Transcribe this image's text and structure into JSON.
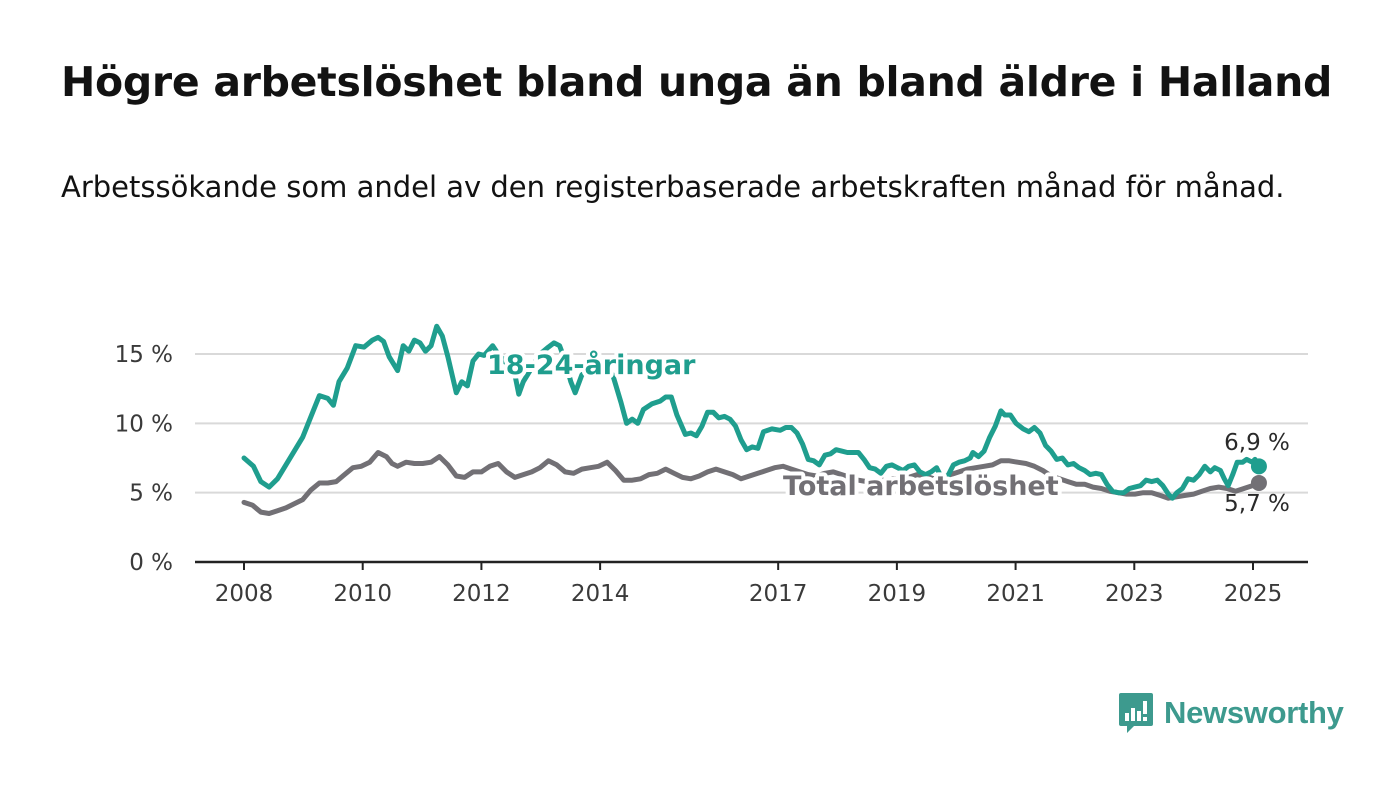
{
  "header": {
    "title": "Högre arbetslöshet bland unga än bland äldre i Halland",
    "subtitle": "Arbetssökande som andel av den registerbaserade arbetskraften månad för månad."
  },
  "brand": {
    "name": "Newsworthy",
    "icon": "newsworthy-logo-icon",
    "color": "#3d9a8e"
  },
  "chart_data": {
    "type": "line",
    "title": "Högre arbetslöshet bland unga än bland äldre i Halland",
    "subtitle": "Arbetssökande som andel av den registerbaserade arbetskraften månad för månad.",
    "xlabel": "",
    "ylabel": "",
    "x_domain": [
      2008,
      2025.2
    ],
    "ylim": [
      0,
      17.5
    ],
    "y_ticks": [
      0,
      5,
      10,
      15
    ],
    "y_tick_labels": [
      "0 %",
      "5 %",
      "10 %",
      "15 %"
    ],
    "x_ticks": [
      2008,
      2010,
      2012,
      2014,
      2017,
      2019,
      2021,
      2023,
      2025
    ],
    "x_tick_labels": [
      "2008",
      "2010",
      "2012",
      "2014",
      "2017",
      "2019",
      "2021",
      "2023",
      "2025"
    ],
    "grid": true,
    "legend": "inline labels",
    "series": [
      {
        "name": "18-24-åringar",
        "color": "#1f9e8e",
        "end_label": "6,9 %",
        "points": [
          [
            2008.0,
            7.5
          ],
          [
            2008.17,
            6.9
          ],
          [
            2008.3,
            5.8
          ],
          [
            2008.45,
            5.4
          ],
          [
            2008.6,
            6.0
          ],
          [
            2008.75,
            7.0
          ],
          [
            2008.9,
            8.0
          ],
          [
            2009.05,
            9.0
          ],
          [
            2009.2,
            10.5
          ],
          [
            2009.35,
            12.0
          ],
          [
            2009.5,
            11.8
          ],
          [
            2009.6,
            11.3
          ],
          [
            2009.7,
            13.0
          ],
          [
            2009.85,
            14.0
          ],
          [
            2010.0,
            15.6
          ],
          [
            2010.15,
            15.5
          ],
          [
            2010.3,
            16.0
          ],
          [
            2010.4,
            16.2
          ],
          [
            2010.5,
            15.9
          ],
          [
            2010.6,
            14.8
          ],
          [
            2010.75,
            13.8
          ],
          [
            2010.85,
            15.6
          ],
          [
            2010.95,
            15.2
          ],
          [
            2011.05,
            16.0
          ],
          [
            2011.15,
            15.8
          ],
          [
            2011.25,
            15.2
          ],
          [
            2011.35,
            15.6
          ],
          [
            2011.45,
            17.0
          ],
          [
            2011.55,
            16.3
          ],
          [
            2011.65,
            14.8
          ],
          [
            2011.8,
            12.2
          ],
          [
            2011.9,
            13.0
          ],
          [
            2012.0,
            12.7
          ],
          [
            2012.1,
            14.5
          ],
          [
            2012.2,
            15.0
          ],
          [
            2012.3,
            14.9
          ],
          [
            2012.45,
            15.6
          ],
          [
            2012.55,
            15.0
          ],
          [
            2012.65,
            14.6
          ],
          [
            2012.75,
            14.0
          ],
          [
            2012.85,
            13.5
          ],
          [
            2012.92,
            12.1
          ],
          [
            2013.0,
            13.0
          ],
          [
            2013.15,
            14.0
          ],
          [
            2013.3,
            15.0
          ],
          [
            2013.45,
            15.5
          ],
          [
            2013.55,
            15.8
          ],
          [
            2013.65,
            15.6
          ],
          [
            2013.75,
            14.5
          ],
          [
            2013.85,
            13.0
          ],
          [
            2013.93,
            12.2
          ],
          [
            2014.05,
            13.5
          ],
          [
            2014.2,
            14.0
          ],
          [
            2014.35,
            13.8
          ],
          [
            2014.5,
            13.5
          ],
          [
            2014.6,
            13.5
          ],
          [
            2014.75,
            11.5
          ],
          [
            2014.85,
            10.0
          ],
          [
            2014.95,
            10.3
          ],
          [
            2015.05,
            10.0
          ],
          [
            2015.15,
            11.0
          ],
          [
            2015.3,
            11.4
          ],
          [
            2015.45,
            11.6
          ],
          [
            2015.55,
            11.9
          ],
          [
            2015.65,
            11.9
          ],
          [
            2015.75,
            10.6
          ],
          [
            2015.9,
            9.2
          ],
          [
            2016.0,
            9.3
          ],
          [
            2016.1,
            9.1
          ],
          [
            2016.2,
            9.8
          ],
          [
            2016.3,
            10.8
          ],
          [
            2016.4,
            10.8
          ],
          [
            2016.5,
            10.4
          ],
          [
            2016.6,
            10.5
          ],
          [
            2016.7,
            10.3
          ],
          [
            2016.8,
            9.8
          ],
          [
            2016.9,
            8.8
          ],
          [
            2017.0,
            8.1
          ],
          [
            2017.1,
            8.3
          ],
          [
            2017.2,
            8.2
          ],
          [
            2017.3,
            9.4
          ],
          [
            2017.45,
            9.6
          ],
          [
            2017.6,
            9.5
          ],
          [
            2017.7,
            9.7
          ],
          [
            2017.8,
            9.7
          ],
          [
            2017.9,
            9.3
          ],
          [
            2018.0,
            8.5
          ],
          [
            2018.1,
            7.4
          ],
          [
            2018.2,
            7.3
          ],
          [
            2018.3,
            7.0
          ],
          [
            2018.4,
            7.7
          ],
          [
            2018.5,
            7.8
          ],
          [
            2018.6,
            8.1
          ],
          [
            2018.7,
            8.0
          ],
          [
            2018.8,
            7.9
          ],
          [
            2018.9,
            7.9
          ],
          [
            2019.0,
            7.9
          ],
          [
            2019.1,
            7.4
          ],
          [
            2019.2,
            6.8
          ],
          [
            2019.3,
            6.7
          ],
          [
            2019.4,
            6.4
          ],
          [
            2019.5,
            6.9
          ],
          [
            2019.6,
            7.0
          ],
          [
            2019.7,
            6.8
          ],
          [
            2019.8,
            6.6
          ],
          [
            2019.9,
            6.9
          ],
          [
            2020.0,
            7.0
          ],
          [
            2020.1,
            6.5
          ],
          [
            2020.2,
            6.3
          ],
          [
            2020.3,
            6.5
          ],
          [
            2020.4,
            6.8
          ],
          [
            2020.5,
            6.0
          ],
          [
            2020.6,
            6.2
          ],
          [
            2020.7,
            7.0
          ],
          [
            2020.8,
            7.2
          ],
          [
            2020.9,
            7.3
          ],
          [
            2021.0,
            7.5
          ],
          [
            2021.05,
            7.9
          ],
          [
            2021.15,
            7.6
          ],
          [
            2021.25,
            8.0
          ],
          [
            2021.35,
            9.0
          ],
          [
            2021.45,
            9.8
          ],
          [
            2021.55,
            10.9
          ],
          [
            2021.62,
            10.6
          ],
          [
            2021.72,
            10.6
          ],
          [
            2021.82,
            10.0
          ],
          [
            2021.95,
            9.6
          ],
          [
            2022.05,
            9.4
          ],
          [
            2022.15,
            9.7
          ],
          [
            2022.25,
            9.3
          ],
          [
            2022.35,
            8.4
          ],
          [
            2022.45,
            8.0
          ],
          [
            2022.55,
            7.4
          ],
          [
            2022.65,
            7.5
          ],
          [
            2022.75,
            7.0
          ],
          [
            2022.85,
            7.1
          ],
          [
            2022.95,
            6.8
          ],
          [
            2023.05,
            6.6
          ],
          [
            2023.15,
            6.3
          ],
          [
            2023.25,
            6.4
          ],
          [
            2023.35,
            6.3
          ],
          [
            2023.45,
            5.6
          ],
          [
            2023.55,
            5.1
          ],
          [
            2023.65,
            5.0
          ],
          [
            2023.75,
            5.0
          ],
          [
            2023.85,
            5.3
          ],
          [
            2023.95,
            5.4
          ],
          [
            2024.05,
            5.5
          ],
          [
            2024.15,
            5.9
          ],
          [
            2024.25,
            5.8
          ],
          [
            2024.35,
            5.9
          ],
          [
            2024.45,
            5.5
          ],
          [
            2024.55,
            4.9
          ],
          [
            2024.62,
            4.6
          ],
          [
            2024.7,
            5.0
          ],
          [
            2024.8,
            5.3
          ],
          [
            2024.9,
            6.0
          ],
          [
            2025.0,
            5.9
          ],
          [
            2025.1,
            6.3
          ],
          [
            2025.2,
            6.9
          ],
          [
            2025.3,
            6.5
          ],
          [
            2025.38,
            6.8
          ],
          [
            2025.48,
            6.6
          ],
          [
            2025.55,
            6.0
          ],
          [
            2025.62,
            5.5
          ],
          [
            2025.7,
            6.3
          ],
          [
            2025.78,
            7.2
          ],
          [
            2025.88,
            7.2
          ],
          [
            2025.95,
            7.4
          ],
          [
            2026.05,
            7.2
          ],
          [
            2026.1,
            7.4
          ],
          [
            2026.17,
            6.9
          ]
        ]
      },
      {
        "name": "Total arbetslöshet",
        "color": "#727075",
        "end_label": "5,7 %",
        "points": [
          [
            2008.0,
            4.3
          ],
          [
            2008.15,
            4.1
          ],
          [
            2008.3,
            3.6
          ],
          [
            2008.45,
            3.5
          ],
          [
            2008.6,
            3.7
          ],
          [
            2008.75,
            3.9
          ],
          [
            2008.9,
            4.2
          ],
          [
            2009.05,
            4.5
          ],
          [
            2009.2,
            5.2
          ],
          [
            2009.35,
            5.7
          ],
          [
            2009.5,
            5.7
          ],
          [
            2009.65,
            5.8
          ],
          [
            2009.8,
            6.3
          ],
          [
            2009.95,
            6.8
          ],
          [
            2010.1,
            6.9
          ],
          [
            2010.25,
            7.2
          ],
          [
            2010.4,
            7.9
          ],
          [
            2010.55,
            7.6
          ],
          [
            2010.65,
            7.1
          ],
          [
            2010.75,
            6.9
          ],
          [
            2010.9,
            7.2
          ],
          [
            2011.05,
            7.1
          ],
          [
            2011.2,
            7.1
          ],
          [
            2011.35,
            7.2
          ],
          [
            2011.5,
            7.6
          ],
          [
            2011.65,
            7.0
          ],
          [
            2011.8,
            6.2
          ],
          [
            2011.95,
            6.1
          ],
          [
            2012.1,
            6.5
          ],
          [
            2012.25,
            6.5
          ],
          [
            2012.4,
            6.9
          ],
          [
            2012.55,
            7.1
          ],
          [
            2012.7,
            6.5
          ],
          [
            2012.85,
            6.1
          ],
          [
            2013.0,
            6.3
          ],
          [
            2013.15,
            6.5
          ],
          [
            2013.3,
            6.8
          ],
          [
            2013.45,
            7.3
          ],
          [
            2013.6,
            7.0
          ],
          [
            2013.75,
            6.5
          ],
          [
            2013.9,
            6.4
          ],
          [
            2014.05,
            6.7
          ],
          [
            2014.2,
            6.8
          ],
          [
            2014.35,
            6.9
          ],
          [
            2014.5,
            7.2
          ],
          [
            2014.65,
            6.6
          ],
          [
            2014.8,
            5.9
          ],
          [
            2014.95,
            5.9
          ],
          [
            2015.1,
            6.0
          ],
          [
            2015.25,
            6.3
          ],
          [
            2015.4,
            6.4
          ],
          [
            2015.55,
            6.7
          ],
          [
            2015.7,
            6.4
          ],
          [
            2015.85,
            6.1
          ],
          [
            2016.0,
            6.0
          ],
          [
            2016.15,
            6.2
          ],
          [
            2016.3,
            6.5
          ],
          [
            2016.45,
            6.7
          ],
          [
            2016.6,
            6.5
          ],
          [
            2016.75,
            6.3
          ],
          [
            2016.9,
            6.0
          ],
          [
            2017.05,
            6.2
          ],
          [
            2017.2,
            6.4
          ],
          [
            2017.35,
            6.6
          ],
          [
            2017.5,
            6.8
          ],
          [
            2017.65,
            6.9
          ],
          [
            2017.8,
            6.7
          ],
          [
            2017.95,
            6.5
          ],
          [
            2018.1,
            6.3
          ],
          [
            2018.25,
            6.2
          ],
          [
            2018.4,
            6.4
          ],
          [
            2018.55,
            6.5
          ],
          [
            2018.7,
            6.3
          ],
          [
            2018.85,
            6.1
          ],
          [
            2019.0,
            5.9
          ],
          [
            2019.15,
            5.8
          ],
          [
            2019.3,
            5.8
          ],
          [
            2019.45,
            5.9
          ],
          [
            2019.6,
            6.0
          ],
          [
            2019.75,
            6.0
          ],
          [
            2019.9,
            6.1
          ],
          [
            2020.05,
            6.3
          ],
          [
            2020.2,
            6.2
          ],
          [
            2020.35,
            6.0
          ],
          [
            2020.5,
            6.1
          ],
          [
            2020.65,
            6.3
          ],
          [
            2020.8,
            6.5
          ],
          [
            2020.95,
            6.7
          ],
          [
            2021.1,
            6.8
          ],
          [
            2021.25,
            6.9
          ],
          [
            2021.4,
            7.0
          ],
          [
            2021.55,
            7.3
          ],
          [
            2021.7,
            7.3
          ],
          [
            2021.85,
            7.2
          ],
          [
            2022.0,
            7.1
          ],
          [
            2022.15,
            6.9
          ],
          [
            2022.3,
            6.6
          ],
          [
            2022.45,
            6.2
          ],
          [
            2022.6,
            6.0
          ],
          [
            2022.75,
            5.8
          ],
          [
            2022.9,
            5.6
          ],
          [
            2023.05,
            5.6
          ],
          [
            2023.2,
            5.4
          ],
          [
            2023.35,
            5.3
          ],
          [
            2023.5,
            5.1
          ],
          [
            2023.65,
            5.0
          ],
          [
            2023.8,
            4.9
          ],
          [
            2023.95,
            4.9
          ],
          [
            2024.1,
            5.0
          ],
          [
            2024.25,
            5.0
          ],
          [
            2024.4,
            4.8
          ],
          [
            2024.55,
            4.6
          ],
          [
            2024.7,
            4.7
          ],
          [
            2024.85,
            4.8
          ],
          [
            2025.0,
            4.9
          ],
          [
            2025.15,
            5.1
          ],
          [
            2025.3,
            5.3
          ],
          [
            2025.45,
            5.4
          ],
          [
            2025.6,
            5.3
          ],
          [
            2025.75,
            5.1
          ],
          [
            2025.9,
            5.3
          ],
          [
            2026.05,
            5.5
          ],
          [
            2026.17,
            5.7
          ]
        ]
      }
    ]
  }
}
